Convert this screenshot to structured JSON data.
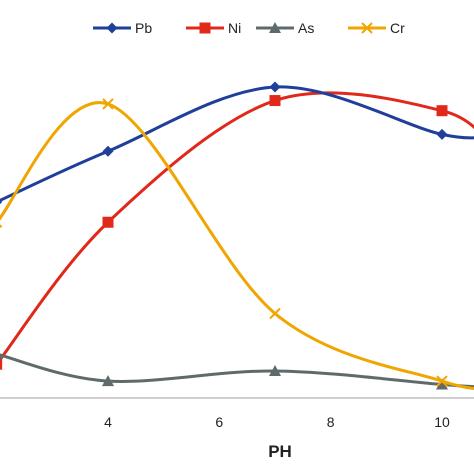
{
  "chart_data": {
    "type": "line",
    "title": "",
    "xlabel": "PH",
    "ylabel": "",
    "xlim": [
      2,
      11
    ],
    "ylim": [
      0,
      100
    ],
    "x_ticks": [
      "4",
      "6",
      "8",
      "10"
    ],
    "x_tick_values": [
      4,
      6,
      8,
      10
    ],
    "grid": false,
    "legend_position": "top",
    "series": [
      {
        "name": "Pb",
        "color": "#1f3f9b",
        "marker": "diamond",
        "x": [
          2,
          4,
          7,
          10,
          11
        ],
        "y": [
          58,
          73,
          92,
          78,
          78
        ]
      },
      {
        "name": "Ni",
        "color": "#e0281b",
        "marker": "square",
        "x": [
          2,
          4,
          7,
          10,
          11
        ],
        "y": [
          10,
          52,
          88,
          85,
          72
        ]
      },
      {
        "name": "As",
        "color": "#5f6b6b",
        "marker": "triangle",
        "x": [
          2,
          4,
          7,
          10,
          11
        ],
        "y": [
          13,
          5,
          8,
          4,
          3
        ]
      },
      {
        "name": "Cr",
        "color": "#f0a500",
        "marker": "x",
        "x": [
          2,
          4,
          7,
          10,
          11
        ],
        "y": [
          52,
          87,
          25,
          5,
          3
        ]
      }
    ]
  }
}
